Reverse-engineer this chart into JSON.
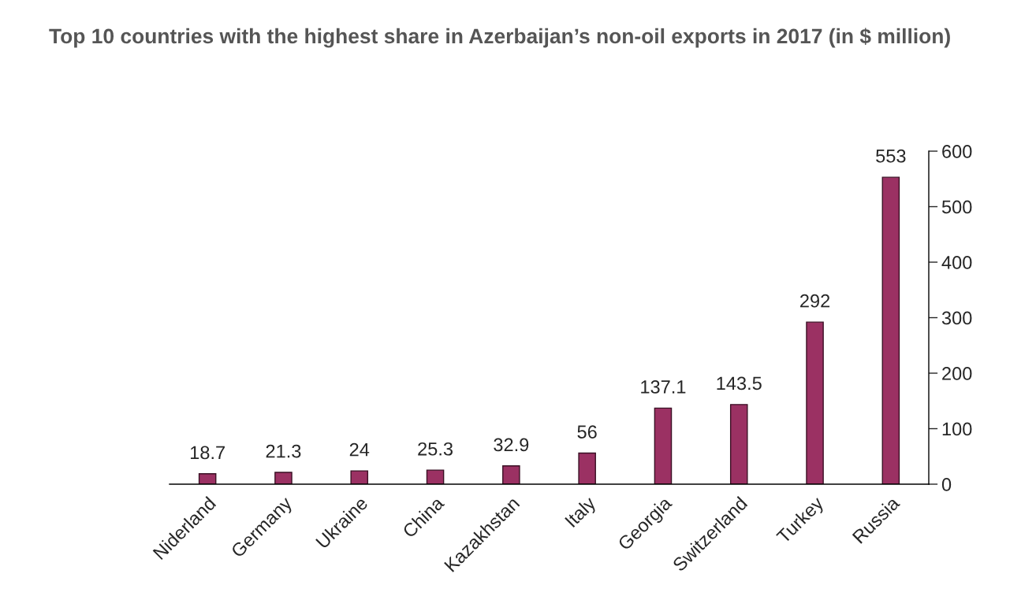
{
  "chart_data": {
    "type": "bar",
    "title": "Top 10 countries with the highest share in Azerbaijan’s non-oil exports in 2017 (in $ million)",
    "categories": [
      "Niderland",
      "Germany",
      "Ukraine",
      "China",
      "Kazakhstan",
      "Italy",
      "Georgia",
      "Switzerland",
      "Turkey",
      "Russia"
    ],
    "values": [
      18.7,
      21.3,
      24,
      25.3,
      32.9,
      56,
      137.1,
      143.5,
      292,
      553
    ],
    "color": "#9b3163",
    "ylim": [
      0,
      600
    ],
    "yticks": [
      0,
      100,
      200,
      300,
      400,
      500,
      600
    ],
    "data_labels": true,
    "grid": false,
    "legend": false
  }
}
